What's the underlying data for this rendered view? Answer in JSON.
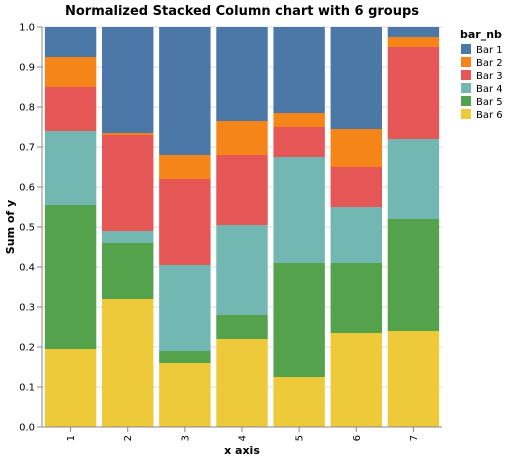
{
  "chart_data": {
    "type": "bar",
    "stacked": true,
    "normalized": true,
    "title": "Normalized Stacked Column chart with 6 groups",
    "xlabel": "x axis",
    "ylabel": "Sum of y",
    "ylim": [
      0,
      1
    ],
    "yticks": [
      "0.0",
      "0.1",
      "0.2",
      "0.3",
      "0.4",
      "0.5",
      "0.6",
      "0.7",
      "0.8",
      "0.9",
      "1.0"
    ],
    "grid": true,
    "legend_title": "bar_nb",
    "legend_position": "right",
    "categories": [
      "1",
      "2",
      "3",
      "4",
      "5",
      "6",
      "7"
    ],
    "stack_order_bottom_to_top": [
      "Bar 6",
      "Bar 5",
      "Bar 4",
      "Bar 3",
      "Bar 2",
      "Bar 1"
    ],
    "series": [
      {
        "name": "Bar 1",
        "color": "#4c78a8",
        "values": [
          0.075,
          0.265,
          0.32,
          0.235,
          0.215,
          0.255,
          0.025
        ]
      },
      {
        "name": "Bar 2",
        "color": "#f58518",
        "values": [
          0.075,
          0.005,
          0.06,
          0.085,
          0.035,
          0.095,
          0.025
        ]
      },
      {
        "name": "Bar 3",
        "color": "#e45756",
        "values": [
          0.11,
          0.24,
          0.215,
          0.175,
          0.075,
          0.1,
          0.23
        ]
      },
      {
        "name": "Bar 4",
        "color": "#72b7b2",
        "values": [
          0.185,
          0.03,
          0.215,
          0.225,
          0.265,
          0.14,
          0.2
        ]
      },
      {
        "name": "Bar 5",
        "color": "#54a24b",
        "values": [
          0.36,
          0.14,
          0.03,
          0.06,
          0.285,
          0.175,
          0.28
        ]
      },
      {
        "name": "Bar 6",
        "color": "#eeca3b",
        "values": [
          0.195,
          0.32,
          0.16,
          0.22,
          0.125,
          0.235,
          0.24
        ]
      }
    ]
  }
}
